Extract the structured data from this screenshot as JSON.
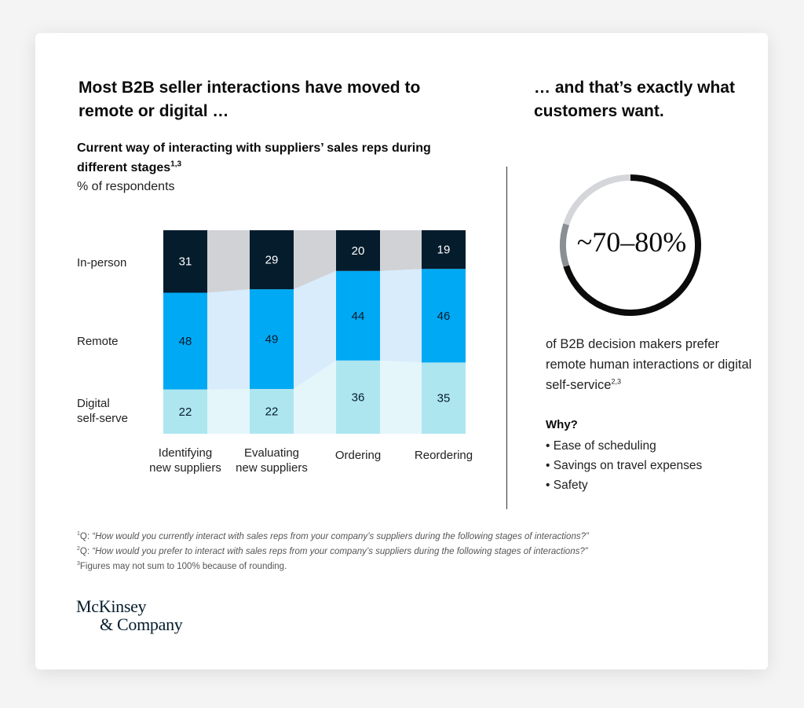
{
  "headline_left": "Most B2B seller interactions have moved to remote or digital …",
  "headline_right": "… and that’s exactly what customers want.",
  "subtitle": "Current way of interacting with suppliers’ sales reps during different stages",
  "subtitle_sup": "1,3",
  "unit_label": "% of respondents",
  "row_labels": {
    "in_person": "In-person",
    "remote": "Remote",
    "digital_line1": "Digital",
    "digital_line2": "self-serve"
  },
  "chart_data": {
    "type": "bar",
    "stacked": true,
    "title": "Current way of interacting with suppliers’ sales reps during different stages",
    "ylabel": "% of respondents",
    "categories": [
      "Identifying new suppliers",
      "Evaluating new suppliers",
      "Ordering",
      "Reordering"
    ],
    "category_lines": [
      [
        "Identifying",
        "new suppliers"
      ],
      [
        "Evaluating",
        "new suppliers"
      ],
      [
        "Ordering"
      ],
      [
        "Reordering"
      ]
    ],
    "series": [
      {
        "name": "Digital self-serve",
        "values": [
          22,
          22,
          36,
          35
        ],
        "color": "#aee6f0",
        "band_color": "#e4f6fa",
        "label_color": "#051c2c"
      },
      {
        "name": "Remote",
        "values": [
          48,
          49,
          44,
          46
        ],
        "color": "#00a9f4",
        "band_color": "#d8ecfc",
        "label_color": "#051c2c"
      },
      {
        "name": "In-person",
        "values": [
          31,
          29,
          20,
          19
        ],
        "color": "#051c2c",
        "band_color": "#d0d2d6",
        "label_color": "#ffffff"
      }
    ]
  },
  "donut": {
    "label": "~70–80%",
    "range_low": 70,
    "range_high": 80,
    "color_main": "#0b0b0b",
    "color_range": "#8a8f94",
    "color_rest": "#d4d6d9"
  },
  "description": "of B2B decision makers prefer remote human interactions or digital self-service",
  "description_sup": "2,3",
  "why_title": "Why?",
  "reasons": [
    "• Ease of scheduling",
    "• Savings on travel expenses",
    "• Safety"
  ],
  "footnotes": [
    {
      "sup": "1",
      "prefix": "Q: ",
      "text": "“How would you currently interact with sales reps from your company’s suppliers during the following stages of interactions?”"
    },
    {
      "sup": "2",
      "prefix": "Q: ",
      "text": "“How would you prefer to interact with sales reps from your company’s suppliers during the following stages of interactions?”"
    },
    {
      "sup": "3",
      "prefix": "",
      "text": "Figures may not sum to 100% because of rounding."
    }
  ],
  "logo": {
    "line1": "McKinsey",
    "line2": "& Company"
  }
}
